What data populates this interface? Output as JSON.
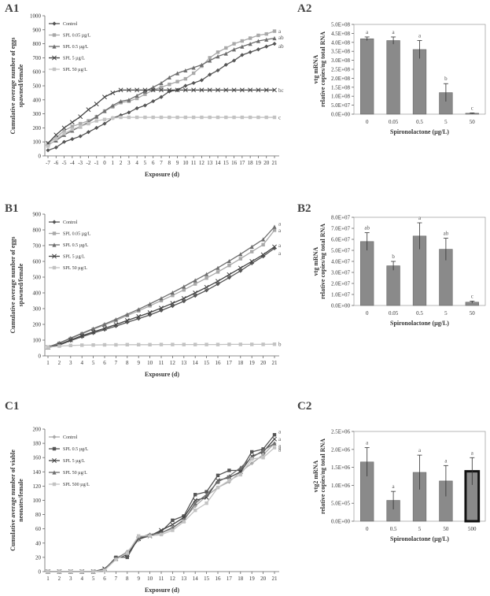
{
  "panels": [
    {
      "id": "A1",
      "label": "A1"
    },
    {
      "id": "A2",
      "label": "A2"
    },
    {
      "id": "B1",
      "label": "B1"
    },
    {
      "id": "B2",
      "label": "B2"
    },
    {
      "id": "C1",
      "label": "C1"
    },
    {
      "id": "C2",
      "label": "C2"
    }
  ],
  "chart_data": [
    {
      "id": "A1",
      "type": "line",
      "xlabel": "Exposure (d)",
      "ylabel": [
        "Cumulative average number of eggs",
        "spawned/female"
      ],
      "categories": [
        "-7",
        "-6",
        "-5",
        "-4",
        "-3",
        "-2",
        "-1",
        "0",
        "1",
        "2",
        "3",
        "4",
        "5",
        "6",
        "7",
        "8",
        "9",
        "10",
        "11",
        "12",
        "13",
        "14",
        "15",
        "16",
        "17",
        "18",
        "19",
        "20",
        "21"
      ],
      "ylim": [
        0,
        1000
      ],
      "yticks": [
        0,
        100,
        200,
        300,
        400,
        500,
        600,
        700,
        800,
        900,
        1000
      ],
      "series": [
        {
          "name": "Control",
          "marker": "diamond",
          "color": "#555555",
          "end_label": "ab",
          "values": [
            40,
            60,
            100,
            120,
            140,
            170,
            200,
            230,
            270,
            290,
            310,
            340,
            360,
            390,
            420,
            460,
            470,
            500,
            520,
            540,
            580,
            610,
            650,
            680,
            720,
            740,
            760,
            780,
            800
          ]
        },
        {
          "name": "SPL 0.05 µg/L",
          "marker": "square",
          "color": "#a9a9a9",
          "end_label": "a",
          "values": [
            90,
            130,
            180,
            210,
            230,
            250,
            280,
            320,
            350,
            380,
            390,
            410,
            440,
            470,
            490,
            510,
            530,
            550,
            590,
            640,
            700,
            740,
            770,
            800,
            820,
            840,
            860,
            870,
            890
          ]
        },
        {
          "name": "SPL 0.5 µg/L",
          "marker": "triangle",
          "color": "#6e6e6e",
          "end_label": "ab",
          "values": [
            80,
            110,
            150,
            180,
            210,
            240,
            280,
            320,
            360,
            390,
            400,
            430,
            460,
            490,
            520,
            560,
            590,
            610,
            630,
            650,
            680,
            710,
            730,
            760,
            780,
            800,
            820,
            830,
            840
          ]
        },
        {
          "name": "SPL 5 µg/L",
          "marker": "x",
          "color": "#444444",
          "end_label": "bc",
          "values": [
            90,
            150,
            200,
            240,
            280,
            330,
            370,
            420,
            450,
            470,
            470,
            470,
            470,
            470,
            470,
            470,
            470,
            470,
            470,
            470,
            470,
            470,
            470,
            470,
            470,
            470,
            470,
            470,
            470
          ]
        },
        {
          "name": "SPL 50 µg/L",
          "marker": "square",
          "color": "#c3c3c3",
          "end_label": "c",
          "values": [
            70,
            120,
            160,
            190,
            210,
            230,
            250,
            260,
            270,
            275,
            275,
            275,
            275,
            275,
            275,
            275,
            275,
            275,
            275,
            275,
            275,
            275,
            275,
            275,
            275,
            275,
            275,
            275,
            275
          ]
        }
      ]
    },
    {
      "id": "A2",
      "type": "bar",
      "xlabel": "Spironolactone (µg/L)",
      "ylabel": [
        "vtg mRNA",
        "relative copies/ng total RNA"
      ],
      "categories": [
        "0",
        "0.05",
        "0.5",
        "5",
        "50"
      ],
      "values": [
        420000000,
        410000000,
        360000000,
        120000000,
        5000000
      ],
      "errors": [
        10000000,
        20000000,
        50000000,
        50000000,
        2000000
      ],
      "letters": [
        "a",
        "a",
        "a",
        "b",
        "c"
      ],
      "ylim": [
        0,
        500000000
      ],
      "yticks": [
        "0.0E+00",
        "5.0E+07",
        "1.0E+08",
        "1.5E+08",
        "2.0E+08",
        "2.5E+08",
        "3.0E+08",
        "3.5E+08",
        "4.0E+08",
        "4.5E+08",
        "5.0E+08"
      ],
      "highlight": -1
    },
    {
      "id": "B1",
      "type": "line",
      "xlabel": "Exposure (d)",
      "ylabel": [
        "Cumulative average number of eggs",
        "spawned/female"
      ],
      "categories": [
        "1",
        "2",
        "3",
        "4",
        "5",
        "6",
        "7",
        "8",
        "9",
        "10",
        "11",
        "12",
        "13",
        "14",
        "15",
        "16",
        "17",
        "18",
        "19",
        "20",
        "21"
      ],
      "ylim": [
        0,
        900
      ],
      "yticks": [
        0,
        100,
        200,
        300,
        400,
        500,
        600,
        700,
        800,
        900
      ],
      "series": [
        {
          "name": "Control",
          "marker": "diamond",
          "color": "#555555",
          "end_label": "a",
          "values": [
            52,
            68,
            97,
            121,
            145,
            167,
            189,
            213,
            236,
            260,
            288,
            317,
            347,
            382,
            416,
            456,
            497,
            540,
            588,
            632,
            683
          ]
        },
        {
          "name": "SPL 0.05 µg/L",
          "marker": "square",
          "color": "#a9a9a9",
          "end_label": "a",
          "values": [
            55,
            80,
            110,
            140,
            169,
            196,
            224,
            256,
            286,
            318,
            351,
            384,
            419,
            457,
            494,
            533,
            574,
            617,
            662,
            706,
            798
          ]
        },
        {
          "name": "SPL 0.5 µg/L",
          "marker": "triangle",
          "color": "#6e6e6e",
          "end_label": "a",
          "values": [
            56,
            82,
            113,
            143,
            173,
            202,
            232,
            264,
            296,
            330,
            366,
            402,
            440,
            480,
            519,
            559,
            602,
            646,
            693,
            740,
            820
          ]
        },
        {
          "name": "SPL 5 µg/L",
          "marker": "x",
          "color": "#444444",
          "end_label": "a",
          "values": [
            54,
            72,
            101,
            128,
            152,
            175,
            199,
            225,
            250,
            275,
            304,
            334,
            365,
            400,
            436,
            474,
            516,
            558,
            600,
            643,
            693
          ]
        },
        {
          "name": "SPL 50 µg/L",
          "marker": "square",
          "color": "#c3c3c3",
          "end_label": "b",
          "values": [
            55,
            62,
            66,
            68,
            69,
            70,
            70,
            71,
            71,
            71,
            72,
            72,
            72,
            72,
            72,
            72,
            73,
            73,
            73,
            73,
            74
          ]
        }
      ]
    },
    {
      "id": "B2",
      "type": "bar",
      "xlabel": "Spironolactone (µg/L)",
      "ylabel": [
        "vtg mRNA",
        "relative copies/ng total RNA"
      ],
      "categories": [
        "0",
        "0.05",
        "0.5",
        "5",
        "50"
      ],
      "values": [
        58000000,
        36000000,
        63000000,
        51000000,
        3000000
      ],
      "errors": [
        8000000,
        4000000,
        12000000,
        10000000,
        1000000
      ],
      "letters": [
        "ab",
        "b",
        "a",
        "ab",
        "c"
      ],
      "ylim": [
        0,
        80000000
      ],
      "yticks": [
        "0.0E+00",
        "1.0E+07",
        "2.0E+07",
        "3.0E+07",
        "4.0E+07",
        "5.0E+07",
        "6.0E+07",
        "7.0E+07",
        "8.0E+07"
      ],
      "highlight": -1
    },
    {
      "id": "C1",
      "type": "line",
      "xlabel": "Exposure (d)",
      "ylabel": [
        "Cumulative average number of viable",
        "neonates/female"
      ],
      "categories": [
        "1",
        "2",
        "3",
        "4",
        "5",
        "6",
        "7",
        "8",
        "9",
        "10",
        "11",
        "12",
        "13",
        "14",
        "15",
        "16",
        "17",
        "18",
        "19",
        "20",
        "21"
      ],
      "ylim": [
        0,
        200
      ],
      "yticks": [
        0,
        20,
        40,
        60,
        80,
        100,
        120,
        140,
        160,
        180,
        200
      ],
      "series": [
        {
          "name": "Control",
          "marker": "diamond",
          "color": "#a9a9a9",
          "end_label": "a",
          "values": [
            0,
            0,
            0,
            0,
            0,
            2,
            18,
            28,
            44,
            52,
            55,
            60,
            74,
            92,
            106,
            118,
            126,
            140,
            152,
            164,
            180
          ]
        },
        {
          "name": "SPL 0.5 µg/L",
          "marker": "square",
          "color": "#555555",
          "end_label": "a",
          "values": [
            0,
            0,
            0,
            0,
            0,
            3,
            20,
            20,
            48,
            50,
            56,
            72,
            78,
            108,
            112,
            135,
            142,
            142,
            168,
            172,
            192
          ]
        },
        {
          "name": "SPL 5 µg/L",
          "marker": "x",
          "color": "#444444",
          "end_label": "a",
          "values": [
            0,
            0,
            0,
            0,
            0,
            4,
            18,
            24,
            46,
            50,
            58,
            66,
            76,
            100,
            104,
            128,
            132,
            140,
            162,
            168,
            186
          ]
        },
        {
          "name": "SPL 50 µg/L",
          "marker": "triangle",
          "color": "#6e6e6e",
          "end_label": "a",
          "values": [
            0,
            0,
            0,
            0,
            0,
            3,
            19,
            26,
            48,
            52,
            54,
            62,
            72,
            96,
            108,
            126,
            134,
            146,
            160,
            170,
            180
          ]
        },
        {
          "name": "SPL 500 µg/L",
          "marker": "square",
          "color": "#c3c3c3",
          "end_label": "a",
          "values": [
            0,
            0,
            0,
            0,
            0,
            2,
            17,
            26,
            50,
            50,
            52,
            58,
            70,
            86,
            96,
            118,
            128,
            136,
            158,
            160,
            174
          ]
        }
      ]
    },
    {
      "id": "C2",
      "type": "bar",
      "xlabel": "Spironolactone (µg/L)",
      "ylabel": [
        "vtg2 mRNA",
        "relative copies/ng total RNA"
      ],
      "categories": [
        "0",
        "0.5",
        "5",
        "50",
        "500"
      ],
      "values": [
        1650000,
        580000,
        1360000,
        1120000,
        1390000
      ],
      "errors": [
        400000,
        250000,
        480000,
        430000,
        380000
      ],
      "letters": [
        "a",
        "a",
        "a",
        "a",
        "a"
      ],
      "ylim": [
        0,
        2500000
      ],
      "yticks": [
        "0.0E+00",
        "5.0E+05",
        "1.0E+06",
        "1.5E+06",
        "2.0E+06",
        "2.5E+06"
      ],
      "highlight": 4
    }
  ]
}
